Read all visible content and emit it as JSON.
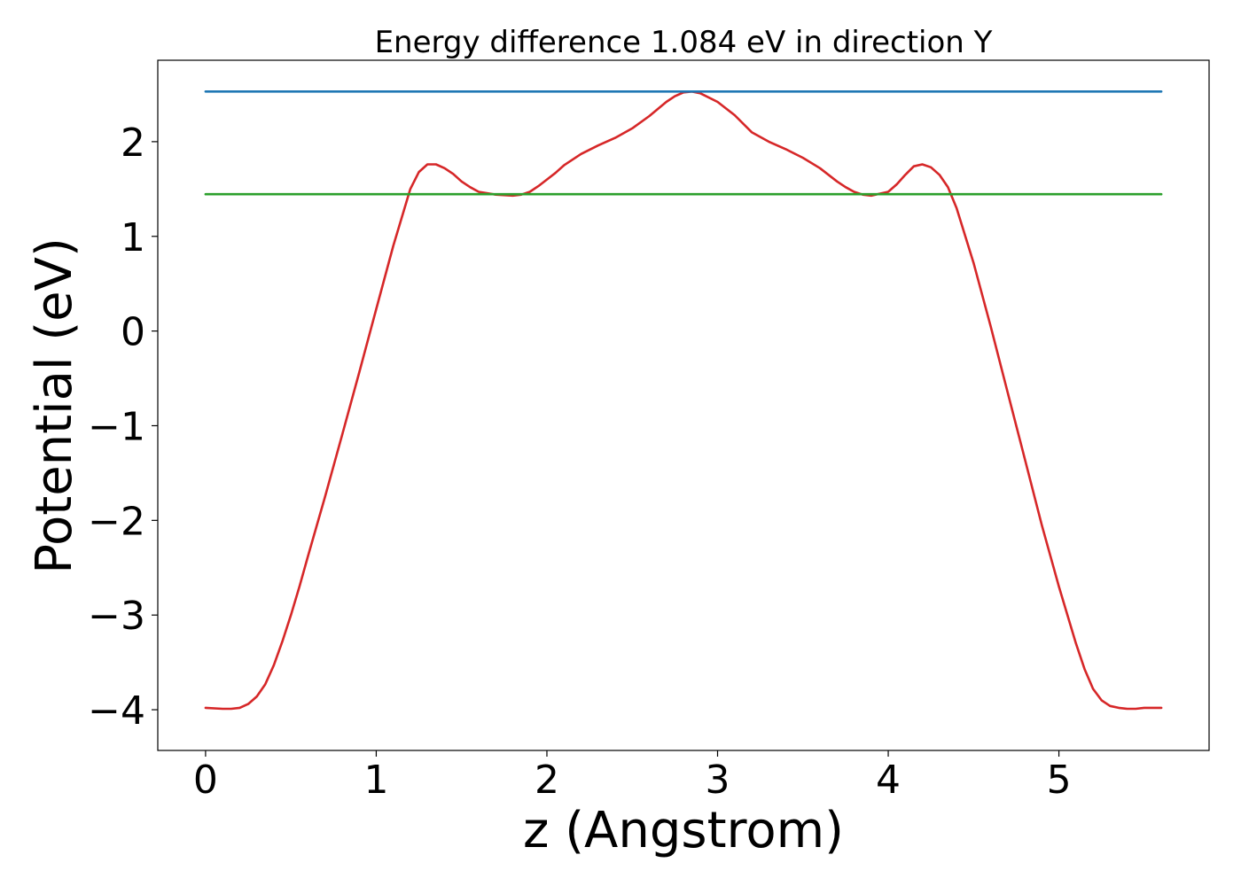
{
  "chart_data": {
    "type": "line",
    "title": "Energy difference 1.084 eV in direction Y",
    "xlabel": "z (Angstrom)",
    "ylabel": "Potential (eV)",
    "xlim": [
      -0.28,
      5.88
    ],
    "ylim": [
      -4.43,
      2.86
    ],
    "xticks": [
      0,
      1,
      2,
      3,
      4,
      5
    ],
    "xtick_labels": [
      "0",
      "1",
      "2",
      "3",
      "4",
      "5"
    ],
    "yticks": [
      -4,
      -3,
      -2,
      -1,
      0,
      1,
      2
    ],
    "ytick_labels": [
      "−4",
      "−3",
      "−2",
      "−1",
      "0",
      "1",
      "2"
    ],
    "grid": false,
    "series": [
      {
        "color": "#d62728",
        "x": [
          0.0,
          0.1,
          0.15,
          0.2,
          0.25,
          0.3,
          0.35,
          0.4,
          0.45,
          0.5,
          0.55,
          0.6,
          0.7,
          0.8,
          0.9,
          1.0,
          1.1,
          1.2,
          1.25,
          1.3,
          1.35,
          1.4,
          1.45,
          1.5,
          1.55,
          1.6,
          1.7,
          1.8,
          1.85,
          1.9,
          1.95,
          2.0,
          2.05,
          2.1,
          2.2,
          2.3,
          2.4,
          2.5,
          2.6,
          2.7,
          2.75,
          2.8,
          2.85,
          2.9,
          3.0,
          3.1,
          3.2,
          3.3,
          3.4,
          3.5,
          3.6,
          3.7,
          3.75,
          3.8,
          3.85,
          3.9,
          4.0,
          4.05,
          4.1,
          4.15,
          4.2,
          4.25,
          4.3,
          4.35,
          4.4,
          4.5,
          4.6,
          4.7,
          4.8,
          4.9,
          5.0,
          5.1,
          5.15,
          5.2,
          5.25,
          5.3,
          5.35,
          5.4,
          5.45,
          5.5,
          5.6
        ],
        "y": [
          -3.98,
          -3.99,
          -3.99,
          -3.98,
          -3.94,
          -3.86,
          -3.73,
          -3.53,
          -3.28,
          -3.0,
          -2.7,
          -2.38,
          -1.75,
          -1.1,
          -0.44,
          0.23,
          0.9,
          1.5,
          1.68,
          1.76,
          1.76,
          1.72,
          1.66,
          1.58,
          1.52,
          1.47,
          1.44,
          1.43,
          1.44,
          1.47,
          1.53,
          1.6,
          1.67,
          1.75,
          1.87,
          1.96,
          2.04,
          2.14,
          2.27,
          2.42,
          2.48,
          2.52,
          2.53,
          2.51,
          2.42,
          2.28,
          2.1,
          2.0,
          1.92,
          1.83,
          1.72,
          1.58,
          1.52,
          1.47,
          1.44,
          1.43,
          1.47,
          1.55,
          1.65,
          1.74,
          1.76,
          1.73,
          1.65,
          1.52,
          1.3,
          0.72,
          0.05,
          -0.65,
          -1.35,
          -2.05,
          -2.7,
          -3.3,
          -3.57,
          -3.78,
          -3.9,
          -3.96,
          -3.98,
          -3.99,
          -3.99,
          -3.98,
          -3.98
        ]
      },
      {
        "color": "#1f77b4",
        "x": [
          0.0,
          5.6
        ],
        "y": [
          2.53,
          2.53
        ]
      },
      {
        "color": "#2ca02c",
        "x": [
          0.0,
          5.6
        ],
        "y": [
          1.445,
          1.445
        ]
      }
    ]
  }
}
